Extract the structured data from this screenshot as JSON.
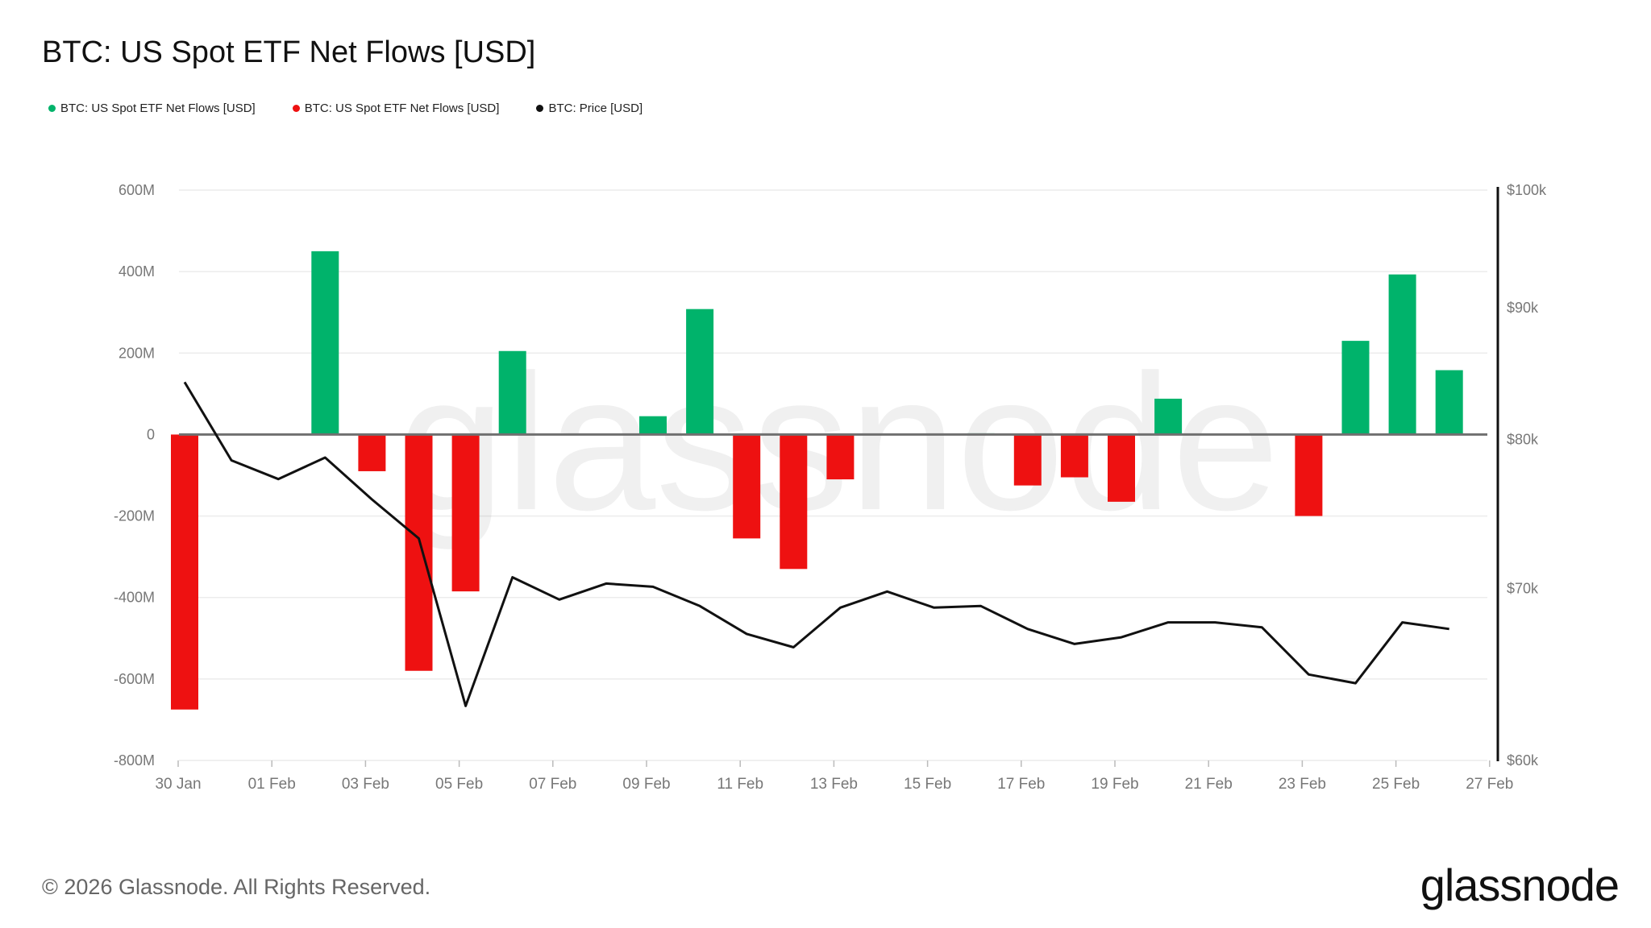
{
  "chart_data": {
    "type": "bar",
    "title": "BTC: US Spot ETF Net Flows [USD]",
    "legend": [
      {
        "name": "BTC: US Spot ETF Net Flows [USD]",
        "color": "#00b36b"
      },
      {
        "name": "BTC: US Spot ETF Net Flows [USD]",
        "color": "#ee1111"
      },
      {
        "name": "BTC: Price [USD]",
        "color": "#111111"
      }
    ],
    "legend_placement": "top-left",
    "x_tick_labels": [
      "30 Jan",
      "01 Feb",
      "03 Feb",
      "05 Feb",
      "07 Feb",
      "09 Feb",
      "11 Feb",
      "13 Feb",
      "15 Feb",
      "17 Feb",
      "19 Feb",
      "21 Feb",
      "23 Feb",
      "25 Feb",
      "27 Feb"
    ],
    "y_left": {
      "ticks": [
        600,
        400,
        200,
        0,
        -200,
        -400,
        -600,
        -800
      ],
      "tick_labels": [
        "600M",
        "400M",
        "200M",
        "0",
        "-200M",
        "-400M",
        "-600M",
        "-800M"
      ],
      "range": [
        -800,
        600
      ],
      "unit": "M USD"
    },
    "y_right": {
      "ticks": [
        100000,
        90000,
        80000,
        70000,
        60000
      ],
      "tick_labels": [
        "$100k",
        "$90k",
        "$80k",
        "$70k",
        "$60k"
      ],
      "range": [
        60000,
        100000
      ],
      "scale": "log"
    },
    "grid": true,
    "days": [
      "30 Jan",
      "31 Jan",
      "01 Feb",
      "02 Feb",
      "03 Feb",
      "04 Feb",
      "05 Feb",
      "06 Feb",
      "07 Feb",
      "08 Feb",
      "09 Feb",
      "10 Feb",
      "11 Feb",
      "12 Feb",
      "13 Feb",
      "14 Feb",
      "15 Feb",
      "16 Feb",
      "17 Feb",
      "18 Feb",
      "19 Feb",
      "20 Feb",
      "21 Feb",
      "22 Feb",
      "23 Feb",
      "24 Feb",
      "25 Feb",
      "26 Feb"
    ],
    "series": [
      {
        "name": "BTC: US Spot ETF Net Flows [USD]",
        "kind": "bar",
        "values": [
          -675,
          0,
          0,
          450,
          -90,
          -580,
          -385,
          205,
          0,
          0,
          45,
          308,
          -255,
          -330,
          -110,
          0,
          0,
          3,
          -125,
          -105,
          -165,
          88,
          0,
          0,
          -200,
          230,
          393,
          158
        ]
      },
      {
        "name": "BTC: Price [USD]",
        "kind": "line",
        "values": [
          84200,
          78500,
          77200,
          78700,
          75800,
          73200,
          63000,
          70700,
          69300,
          70300,
          70100,
          68900,
          67200,
          66400,
          68800,
          69800,
          68800,
          68900,
          67500,
          66600,
          67000,
          67900,
          67900,
          67600,
          64800,
          64300,
          67900,
          67500
        ]
      }
    ]
  },
  "watermark": "glassnode",
  "footer": {
    "copyright": "© 2026 Glassnode. All Rights Reserved.",
    "brand": "glassnode"
  }
}
